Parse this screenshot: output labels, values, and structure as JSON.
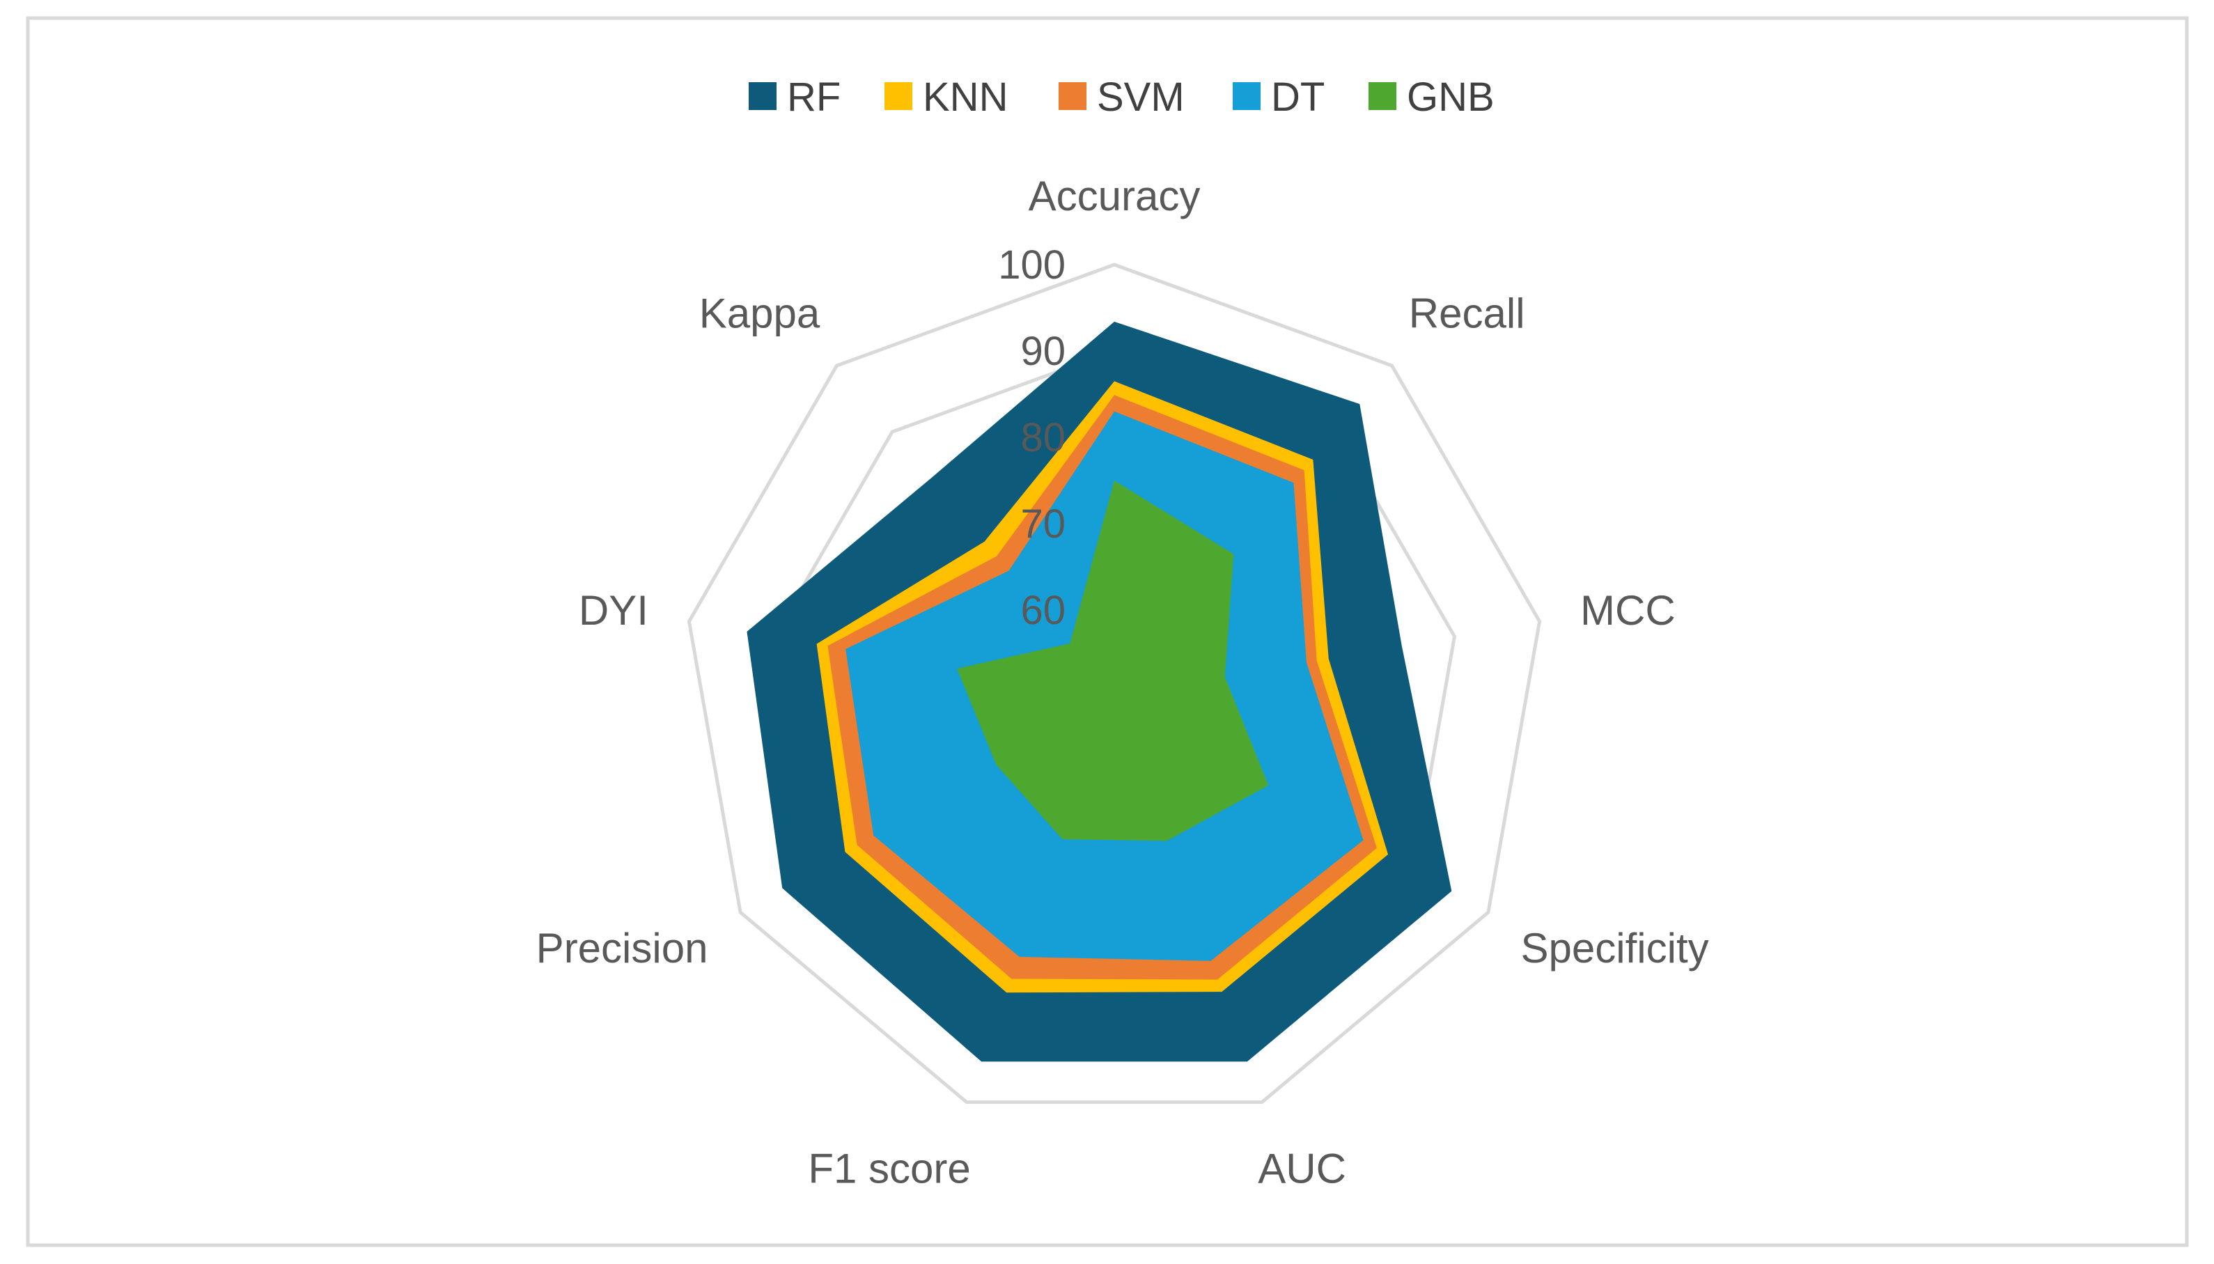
{
  "chart_data": {
    "type": "radar",
    "categories": [
      "Accuracy",
      "Recall",
      "MCC",
      "Specificity",
      "AUC",
      "F1 score",
      "Precision",
      "DYI",
      "Kappa"
    ],
    "rlim": [
      50,
      100
    ],
    "ticks": [
      60,
      70,
      80,
      90,
      100
    ],
    "grid": true,
    "legend_position": "top",
    "series": [
      {
        "name": "RF",
        "color": "#0E5A7A",
        "values": [
          93.4,
          94.2,
          83.8,
          95.1,
          95.0,
          95.0,
          94.4,
          93.2,
          83.0
        ]
      },
      {
        "name": "KNN",
        "color": "#FFC000",
        "values": [
          86.5,
          85.8,
          75.2,
          86.6,
          86.4,
          86.5,
          86.0,
          85.0,
          73.4
        ]
      },
      {
        "name": "SVM",
        "color": "#ED7D31",
        "values": [
          84.9,
          84.2,
          73.8,
          85.1,
          84.9,
          84.8,
          84.4,
          83.7,
          71.2
        ]
      },
      {
        "name": "DT",
        "color": "#169FD6",
        "values": [
          83.0,
          82.3,
          72.6,
          83.3,
          82.6,
          82.1,
          82.2,
          81.6,
          69.0
        ]
      },
      {
        "name": "GNB",
        "color": "#4EA72E",
        "values": [
          75.0,
          71.5,
          63.0,
          70.6,
          67.8,
          67.6,
          65.8,
          68.5,
          58.0
        ]
      }
    ]
  }
}
